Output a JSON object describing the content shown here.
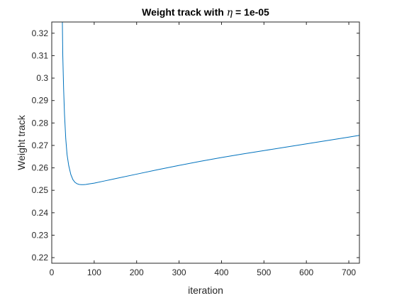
{
  "chart_data": {
    "type": "line",
    "title": {
      "prefix": "Weight track with ",
      "symbol": "η",
      "suffix": " = 1e-05"
    },
    "xlabel": "iteration",
    "ylabel": "Weight track",
    "xlim": [
      0,
      725
    ],
    "ylim": [
      0.2175,
      0.325
    ],
    "xticks": [
      0,
      100,
      200,
      300,
      400,
      500,
      600,
      700
    ],
    "xtick_labels": [
      "0",
      "100",
      "200",
      "300",
      "400",
      "500",
      "600",
      "700"
    ],
    "yticks": [
      0.22,
      0.23,
      0.24,
      0.25,
      0.26,
      0.27,
      0.28,
      0.29,
      0.3,
      0.31,
      0.32
    ],
    "ytick_labels": [
      "0.22",
      "0.23",
      "0.24",
      "0.25",
      "0.26",
      "0.27",
      "0.28",
      "0.29",
      "0.3",
      "0.31",
      "0.32"
    ],
    "grid": false,
    "line_color": "#0072BD",
    "series": [
      {
        "x": [
          25,
          26,
          28,
          30,
          33,
          36,
          40,
          45,
          50,
          55,
          60,
          65,
          70,
          75,
          80,
          90,
          100,
          125,
          150,
          200,
          250,
          300,
          350,
          400,
          450,
          500,
          550,
          600,
          650,
          700,
          725
        ],
        "y": [
          0.325,
          0.31,
          0.295,
          0.284,
          0.273,
          0.266,
          0.261,
          0.257,
          0.2547,
          0.2535,
          0.2529,
          0.2526,
          0.2525,
          0.2525,
          0.2526,
          0.2529,
          0.2532,
          0.2542,
          0.2552,
          0.2572,
          0.2592,
          0.2611,
          0.2629,
          0.2646,
          0.2662,
          0.2677,
          0.2692,
          0.2707,
          0.2722,
          0.2737,
          0.2745
        ]
      }
    ]
  }
}
